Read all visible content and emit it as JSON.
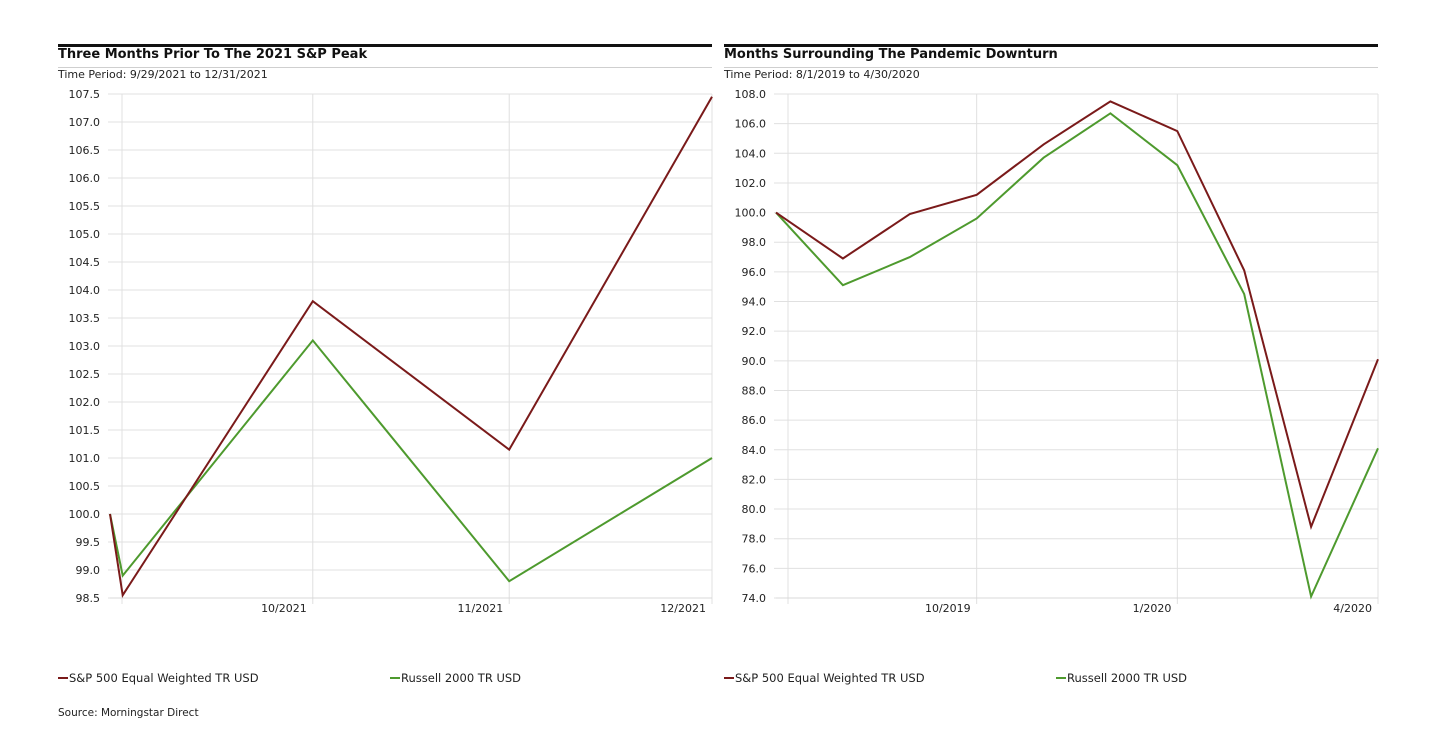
{
  "chart_data": [
    {
      "type": "line",
      "title": "Three Months Prior To The 2021 S&P Peak",
      "subtitle": "Time Period: 9/29/2021 to 12/31/2021",
      "ylim": [
        98.5,
        107.5
      ],
      "yticks": [
        "107.5",
        "107.0",
        "106.5",
        "106.0",
        "105.5",
        "105.0",
        "104.5",
        "104.0",
        "103.5",
        "103.0",
        "102.5",
        "102.0",
        "101.5",
        "101.0",
        "100.5",
        "100.0",
        "99.5",
        "99.0",
        "98.5"
      ],
      "xlim": [
        0,
        95
      ],
      "xtick_labels": [
        "10/2021",
        "11/2021",
        "12/2021"
      ],
      "xtick_positions": [
        32,
        63,
        95
      ],
      "x": [
        0,
        2,
        32,
        63,
        95
      ],
      "series": [
        {
          "name": "S&P 500 Equal Weighted TR USD",
          "color": "#7a1a1a",
          "values": [
            100.0,
            98.55,
            103.8,
            101.15,
            107.45
          ]
        },
        {
          "name": "Russell 2000 TR USD",
          "color": "#4e9a2e",
          "values": [
            100.0,
            98.9,
            103.1,
            98.8,
            101.0
          ]
        }
      ],
      "grid": true,
      "legend_position": "bottom"
    },
    {
      "type": "line",
      "title": "Months Surrounding The Pandemic Downturn",
      "subtitle": "Time Period: 8/1/2019 to 4/30/2020",
      "ylim": [
        74.0,
        108.0
      ],
      "yticks": [
        "108.0",
        "106.0",
        "104.0",
        "102.0",
        "100.0",
        "98.0",
        "96.0",
        "94.0",
        "92.0",
        "90.0",
        "88.0",
        "86.0",
        "84.0",
        "82.0",
        "80.0",
        "78.0",
        "76.0",
        "74.0"
      ],
      "xlim": [
        0,
        9
      ],
      "xtick_labels": [
        "10/2019",
        "1/2020",
        "4/2020"
      ],
      "xtick_positions": [
        3,
        6,
        9
      ],
      "x": [
        0,
        1,
        2,
        3,
        4,
        5,
        6,
        7,
        8,
        9
      ],
      "series": [
        {
          "name": "S&P 500 Equal Weighted TR USD",
          "color": "#7a1a1a",
          "values": [
            100.0,
            96.9,
            99.9,
            101.2,
            104.6,
            107.5,
            105.5,
            96.1,
            78.8,
            90.1
          ]
        },
        {
          "name": "Russell 2000 TR USD",
          "color": "#4e9a2e",
          "values": [
            100.0,
            95.1,
            97.0,
            99.6,
            103.7,
            106.7,
            103.2,
            94.5,
            74.1,
            84.1
          ]
        }
      ],
      "grid": true,
      "legend_position": "bottom"
    }
  ],
  "source": "Source: Morningstar Direct"
}
